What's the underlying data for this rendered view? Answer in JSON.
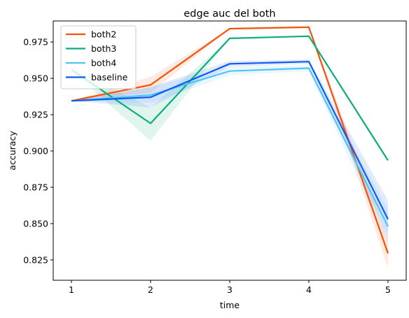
{
  "chart_data": {
    "type": "line",
    "title": "edge auc del both",
    "xlabel": "time",
    "ylabel": "accuracy",
    "x": [
      1,
      2,
      3,
      4,
      5
    ],
    "xlim": [
      0.77,
      5.23
    ],
    "ylim": [
      0.811,
      0.9895
    ],
    "xticks": [
      1,
      2,
      3,
      4,
      5
    ],
    "yticks": [
      0.825,
      0.85,
      0.875,
      0.9,
      0.925,
      0.95,
      0.975
    ],
    "ytick_labels": [
      "0.825",
      "0.850",
      "0.875",
      "0.900",
      "0.925",
      "0.950",
      "0.975"
    ],
    "grid": false,
    "legend_position": "top-left",
    "series": [
      {
        "name": "both2",
        "color": "#f4510b",
        "values": [
          0.9345,
          0.9455,
          0.9842,
          0.9852,
          0.8295
        ],
        "band_low": [
          0.9345,
          0.94,
          0.9842,
          0.9852,
          0.819
        ],
        "band_high": [
          0.9345,
          0.951,
          0.9842,
          0.9852,
          0.84
        ]
      },
      {
        "name": "both3",
        "color": "#0aad7a",
        "values": [
          0.956,
          0.919,
          0.9775,
          0.979,
          0.8935
        ],
        "band_low": [
          0.955,
          0.907,
          0.9775,
          0.979,
          0.8935
        ],
        "band_high": [
          0.957,
          0.93,
          0.9775,
          0.979,
          0.8935
        ]
      },
      {
        "name": "both4",
        "color": "#4fc4f7",
        "values": [
          0.9345,
          0.9385,
          0.955,
          0.957,
          0.848
        ],
        "band_low": [
          0.9345,
          0.933,
          0.952,
          0.955,
          0.836
        ],
        "band_high": [
          0.9345,
          0.944,
          0.958,
          0.959,
          0.86
        ]
      },
      {
        "name": "baseline",
        "color": "#0f5bf0",
        "values": [
          0.9345,
          0.937,
          0.96,
          0.9615,
          0.853
        ],
        "band_low": [
          0.9345,
          0.93,
          0.958,
          0.96,
          0.841
        ],
        "band_high": [
          0.9345,
          0.944,
          0.962,
          0.963,
          0.866
        ]
      }
    ]
  }
}
